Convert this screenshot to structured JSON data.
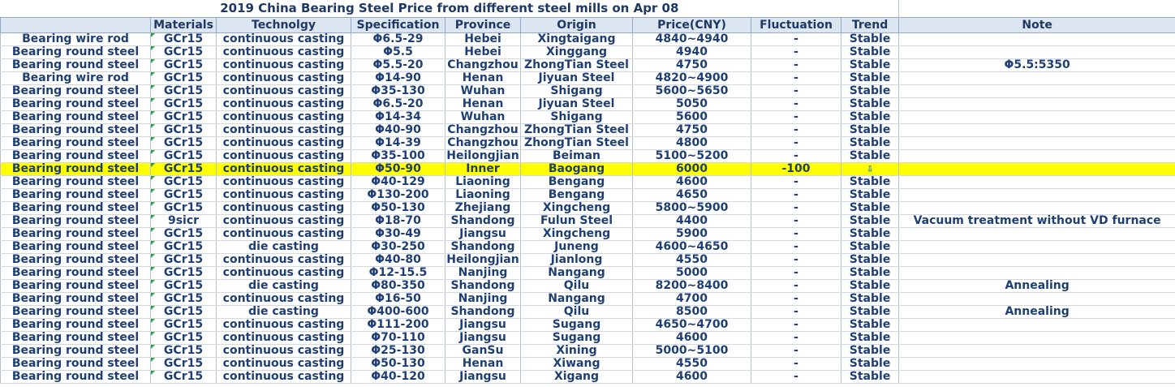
{
  "title": "2019 China Bearing Steel Price from different steel mills on Apr 08",
  "headers": {
    "materials": "Materials",
    "technology": "Technolgy",
    "specification": "Specification",
    "province": "Province",
    "origin": "Origin",
    "price": "Price(CNY)",
    "fluctuation": "Fluctuation",
    "trend": "Trend",
    "note": "Note"
  },
  "rows": [
    {
      "product": "Bearing wire rod",
      "material": "GCr15",
      "tech": "continuous casting",
      "spec": "Φ6.5-29",
      "province": "Hebei",
      "origin": "Xingtaigang",
      "price": "4840~4940",
      "fluct": "-",
      "trend": "Stable",
      "note": ""
    },
    {
      "product": "Bearing round steel",
      "material": "GCr15",
      "tech": "continuous casting",
      "spec": "Φ5.5",
      "province": "Hebei",
      "origin": "Xinggang",
      "price": "4940",
      "fluct": "-",
      "trend": "Stable",
      "note": ""
    },
    {
      "product": "Bearing round steel",
      "material": "GCr15",
      "tech": "continuous casting",
      "spec": "Φ5.5-20",
      "province": "Changzhou",
      "origin": "ZhongTian Steel",
      "price": "4750",
      "fluct": "-",
      "trend": "Stable",
      "note": "Φ5.5:5350"
    },
    {
      "product": "Bearing wire rod",
      "material": "GCr15",
      "tech": "continuous casting",
      "spec": "Φ14-90",
      "province": "Henan",
      "origin": "Jiyuan Steel",
      "price": "4820~4900",
      "fluct": "-",
      "trend": "Stable",
      "note": ""
    },
    {
      "product": "Bearing round steel",
      "material": "GCr15",
      "tech": "continuous casting",
      "spec": "Φ35-130",
      "province": "Wuhan",
      "origin": "Shigang",
      "price": "5600~5650",
      "fluct": "-",
      "trend": "Stable",
      "note": ""
    },
    {
      "product": "Bearing round steel",
      "material": "GCr15",
      "tech": "continuous casting",
      "spec": "Φ6.5-20",
      "province": "Henan",
      "origin": "Jiyuan Steel",
      "price": "5050",
      "fluct": "-",
      "trend": "Stable",
      "note": ""
    },
    {
      "product": "Bearing round steel",
      "material": "GCr15",
      "tech": "continuous casting",
      "spec": "Φ14-34",
      "province": "Wuhan",
      "origin": "Shigang",
      "price": "5600",
      "fluct": "-",
      "trend": "Stable",
      "note": ""
    },
    {
      "product": "Bearing round steel",
      "material": "GCr15",
      "tech": "continuous casting",
      "spec": "Φ40-90",
      "province": "Changzhou",
      "origin": "ZhongTian Steel",
      "price": "4750",
      "fluct": "-",
      "trend": "Stable",
      "note": ""
    },
    {
      "product": "Bearing round steel",
      "material": "GCr15",
      "tech": "continuous casting",
      "spec": "Φ14-39",
      "province": "Changzhou",
      "origin": "ZhongTian Steel",
      "price": "4800",
      "fluct": "-",
      "trend": "Stable",
      "note": ""
    },
    {
      "product": "Bearing round steel",
      "material": "GCr15",
      "tech": "continuous casting",
      "spec": "Φ35-100",
      "province": "Heilongjian",
      "origin": "Beiman",
      "price": "5100~5200",
      "fluct": "-",
      "trend": "Stable",
      "note": ""
    },
    {
      "product": "Bearing round steel",
      "material": "GCr15",
      "tech": "continuous casting",
      "spec": "Φ50-90",
      "province": "Inner",
      "origin": "Baogang",
      "price": "6000",
      "fluct": "-100",
      "trend": "",
      "note": "",
      "highlight": true,
      "trend_icon": "down-arrow-icon"
    },
    {
      "product": "Bearing round steel",
      "material": "GCr15",
      "tech": "continuous casting",
      "spec": "Φ40-129",
      "province": "Liaoning",
      "origin": "Bengang",
      "price": "4600",
      "fluct": "-",
      "trend": "Stable",
      "note": ""
    },
    {
      "product": "Bearing round steel",
      "material": "GCr15",
      "tech": "continuous casting",
      "spec": "Φ130-200",
      "province": "Liaoning",
      "origin": "Bengang",
      "price": "4650",
      "fluct": "-",
      "trend": "Stable",
      "note": ""
    },
    {
      "product": "Bearing round steel",
      "material": "GCr15",
      "tech": "continuous casting",
      "spec": "Φ50-130",
      "province": "Zhejiang",
      "origin": "Xingcheng",
      "price": "5800~5900",
      "fluct": "-",
      "trend": "Stable",
      "note": ""
    },
    {
      "product": "Bearing round steel",
      "material": "9sicr",
      "tech": "continuous casting",
      "spec": "Φ18-70",
      "province": "Shandong",
      "origin": "Fulun Steel",
      "price": "4400",
      "fluct": "-",
      "trend": "Stable",
      "note": "Vacuum treatment without VD furnace"
    },
    {
      "product": "Bearing round steel",
      "material": "GCr15",
      "tech": "continuous casting",
      "spec": "Φ30-49",
      "province": "Jiangsu",
      "origin": "Xingcheng",
      "price": "5900",
      "fluct": "-",
      "trend": "Stable",
      "note": ""
    },
    {
      "product": "Bearing round steel",
      "material": "GCr15",
      "tech": "die casting",
      "spec": "Φ30-250",
      "province": "Shandong",
      "origin": "Juneng",
      "price": "4600~4650",
      "fluct": "-",
      "trend": "Stable",
      "note": ""
    },
    {
      "product": "Bearing round steel",
      "material": "GCr15",
      "tech": "continuous casting",
      "spec": "Φ40-80",
      "province": "Heilongjian",
      "origin": "Jianlong",
      "price": "4550",
      "fluct": "-",
      "trend": "Stable",
      "note": ""
    },
    {
      "product": "Bearing round steel",
      "material": "GCr15",
      "tech": "continuous casting",
      "spec": "Φ12-15.5",
      "province": "Nanjing",
      "origin": "Nangang",
      "price": "5000",
      "fluct": "-",
      "trend": "Stable",
      "note": ""
    },
    {
      "product": "Bearing round steel",
      "material": "GCr15",
      "tech": "die casting",
      "spec": "Φ80-350",
      "province": "Shandong",
      "origin": "Qilu",
      "price": "8200~8400",
      "fluct": "-",
      "trend": "Stable",
      "note": "Annealing"
    },
    {
      "product": "Bearing round steel",
      "material": "GCr15",
      "tech": "continuous casting",
      "spec": "Φ16-50",
      "province": "Nanjing",
      "origin": "Nangang",
      "price": "4700",
      "fluct": "-",
      "trend": "Stable",
      "note": ""
    },
    {
      "product": "Bearing round steel",
      "material": "GCr15",
      "tech": "die casting",
      "spec": "Φ400-600",
      "province": "Shandong",
      "origin": "Qilu",
      "price": "8500",
      "fluct": "-",
      "trend": "Stable",
      "note": "Annealing"
    },
    {
      "product": "Bearing round steel",
      "material": "GCr15",
      "tech": "continuous casting",
      "spec": "Φ111-200",
      "province": "Jiangsu",
      "origin": "Sugang",
      "price": "4650~4700",
      "fluct": "-",
      "trend": "Stable",
      "note": ""
    },
    {
      "product": "Bearing round steel",
      "material": "GCr15",
      "tech": "continuous casting",
      "spec": "Φ70-110",
      "province": "Jiangsu",
      "origin": "Sugang",
      "price": "4600",
      "fluct": "-",
      "trend": "Stable",
      "note": ""
    },
    {
      "product": "Bearing round steel",
      "material": "GCr15",
      "tech": "continuous casting",
      "spec": "Φ25-130",
      "province": "GanSu",
      "origin": "Xining",
      "price": "5000~5100",
      "fluct": "-",
      "trend": "Stable",
      "note": ""
    },
    {
      "product": "Bearing round steel",
      "material": "GCr15",
      "tech": "continuous casting",
      "spec": "Φ50-130",
      "province": "Henan",
      "origin": "Xiwang",
      "price": "4550",
      "fluct": "-",
      "trend": "Stable",
      "note": ""
    },
    {
      "product": "Bearing round steel",
      "material": "GCr15",
      "tech": "continuous casting",
      "spec": "Φ40-120",
      "province": "Jiangsu",
      "origin": "Xigang",
      "price": "4600",
      "fluct": "-",
      "trend": "Stable",
      "note": ""
    }
  ],
  "colors": {
    "highlight": "#ffff00",
    "header_bg": "#dce6f1",
    "text": "#1f3f73",
    "trend_arrow": "#2f6fb7"
  }
}
